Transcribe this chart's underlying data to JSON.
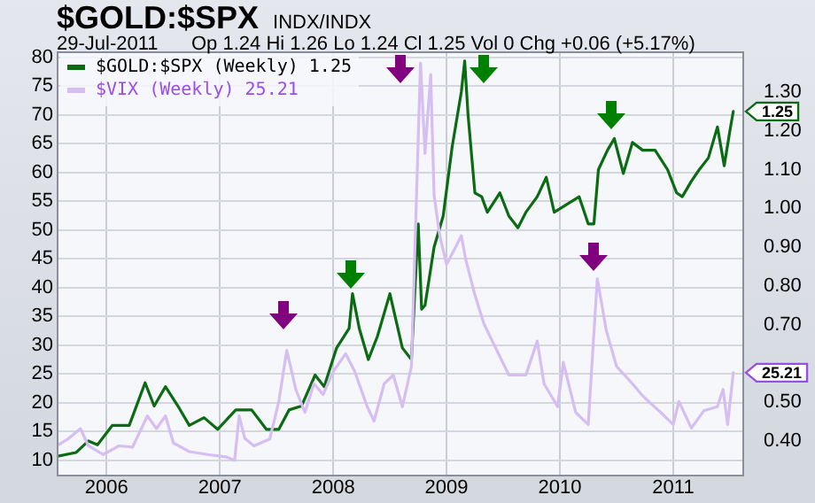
{
  "chart_data": {
    "type": "line",
    "title": "$GOLD:$SPX",
    "subtitle": "INDX/INDX",
    "annotations": [
      "29-Jul-2011",
      "Op 1.24  Hi 1.26  Lo 1.24  Cl 1.25  Vol 0  Chg +0.06 (+5.17%)"
    ],
    "legend": "top left",
    "grid": true,
    "marker": "none",
    "line_style": "solid",
    "xlim": [
      2005.56,
      2011.61
    ],
    "xticks": [
      2006,
      2007,
      2008,
      2009,
      2010,
      2011
    ],
    "ylim": [
      7.5,
      81
    ],
    "yticks": [
      10,
      15,
      20,
      25,
      30,
      35,
      40,
      45,
      50,
      55,
      60,
      65,
      70,
      75,
      80
    ],
    "y2lim": [
      0.313,
      1.405
    ],
    "y2ticks": [
      {
        "value": 0.4,
        "label": "0.40"
      },
      {
        "value": 0.5,
        "label": "0.50"
      },
      {
        "value": 0.7,
        "label": "0.70"
      },
      {
        "value": 0.8,
        "label": "0.80"
      },
      {
        "value": 0.9,
        "label": "0.90"
      },
      {
        "value": 1.0,
        "label": "1.00"
      },
      {
        "value": 1.1,
        "label": "1.10"
      },
      {
        "value": 1.2,
        "label": "1.20"
      },
      {
        "value": 1.3,
        "label": "1.30"
      }
    ],
    "series": [
      {
        "name": "$VIX (Weekly) 25.21",
        "color": "#d6bdf2",
        "axis": "y",
        "x": [
          2005.56,
          2005.66,
          2005.77,
          2005.84,
          2005.97,
          2006.11,
          2006.23,
          2006.36,
          2006.44,
          2006.52,
          2006.59,
          2006.73,
          2006.89,
          2007.05,
          2007.13,
          2007.17,
          2007.22,
          2007.3,
          2007.44,
          2007.52,
          2007.59,
          2007.67,
          2007.75,
          2007.83,
          2007.91,
          2008.0,
          2008.11,
          2008.19,
          2008.3,
          2008.36,
          2008.45,
          2008.53,
          2008.61,
          2008.69,
          2008.77,
          2008.81,
          2008.86,
          2008.89,
          2008.94,
          2009.0,
          2009.08,
          2009.13,
          2009.17,
          2009.25,
          2009.33,
          2009.48,
          2009.55,
          2009.7,
          2009.8,
          2009.86,
          2009.98,
          2010.03,
          2010.14,
          2010.25,
          2010.33,
          2010.41,
          2010.5,
          2010.64,
          2010.72,
          2010.8,
          2010.89,
          2011.0,
          2011.05,
          2011.16,
          2011.27,
          2011.39,
          2011.44,
          2011.48,
          2011.53
        ],
        "values": [
          12.5,
          13.7,
          15.5,
          12.5,
          11,
          12.5,
          12.3,
          17.7,
          15.5,
          17.7,
          13,
          11.5,
          11,
          10.6,
          10,
          17.7,
          13.8,
          12.5,
          13.7,
          20.2,
          29.1,
          22.3,
          18.3,
          23.3,
          21.4,
          25.4,
          28.5,
          25.4,
          19.3,
          16.8,
          23.3,
          24.8,
          19.3,
          26.3,
          79,
          63.3,
          77,
          56,
          49,
          44,
          47,
          49,
          44.8,
          38.7,
          33.7,
          27.6,
          24.8,
          24.8,
          30.7,
          23.3,
          19.3,
          27,
          18.3,
          16.2,
          41.5,
          32.5,
          26.3,
          23.3,
          21.4,
          19.9,
          18.3,
          16.2,
          20.2,
          15.6,
          18.6,
          19.3,
          22.3,
          16.2,
          25.21
        ],
        "value_labels": [
          null,
          null,
          null,
          null,
          null,
          null,
          null,
          null,
          null,
          null,
          null,
          null,
          null,
          null,
          null,
          null,
          null,
          null,
          null,
          null,
          null,
          null,
          null,
          null,
          null,
          null,
          null,
          null,
          null,
          null,
          null,
          null,
          null,
          null,
          null,
          null,
          null,
          null,
          null,
          null,
          null,
          null,
          null,
          null,
          null,
          null,
          null,
          null,
          null,
          null,
          null,
          null,
          null,
          null,
          null,
          null,
          null,
          null,
          null,
          null,
          null,
          null,
          null,
          null,
          null,
          null,
          null,
          null,
          "25.21"
        ]
      },
      {
        "name": "$GOLD:$SPX (Weekly) 1.25",
        "color": "#0b6b12",
        "axis": "y2",
        "x": [
          2005.56,
          2005.73,
          2005.84,
          2005.92,
          2006.05,
          2006.2,
          2006.34,
          2006.42,
          2006.52,
          2006.63,
          2006.73,
          2006.86,
          2006.98,
          2007.14,
          2007.28,
          2007.41,
          2007.52,
          2007.61,
          2007.72,
          2007.84,
          2007.92,
          2008.03,
          2008.14,
          2008.17,
          2008.23,
          2008.31,
          2008.39,
          2008.5,
          2008.61,
          2008.69,
          2008.75,
          2008.78,
          2008.81,
          2008.89,
          2008.97,
          2009.05,
          2009.13,
          2009.16,
          2009.19,
          2009.25,
          2009.31,
          2009.36,
          2009.47,
          2009.55,
          2009.63,
          2009.7,
          2009.8,
          2009.88,
          2009.95,
          2010.06,
          2010.17,
          2010.25,
          2010.3,
          2010.34,
          2010.42,
          2010.48,
          2010.56,
          2010.64,
          2010.73,
          2010.84,
          2010.95,
          2011.03,
          2011.08,
          2011.16,
          2011.23,
          2011.31,
          2011.39,
          2011.45,
          2011.5,
          2011.53
        ],
        "values": [
          0.36,
          0.37,
          0.4,
          0.39,
          0.44,
          0.44,
          0.55,
          0.49,
          0.54,
          0.49,
          0.44,
          0.46,
          0.43,
          0.48,
          0.48,
          0.43,
          0.43,
          0.48,
          0.49,
          0.57,
          0.54,
          0.64,
          0.69,
          0.78,
          0.69,
          0.61,
          0.67,
          0.78,
          0.64,
          0.61,
          0.96,
          0.74,
          0.75,
          0.9,
          0.98,
          1.16,
          1.3,
          1.38,
          1.24,
          1.04,
          1.03,
          0.99,
          1.04,
          0.98,
          0.95,
          0.99,
          1.03,
          1.08,
          0.99,
          1.01,
          1.03,
          0.96,
          0.96,
          1.1,
          1.15,
          1.18,
          1.09,
          1.17,
          1.15,
          1.15,
          1.1,
          1.04,
          1.03,
          1.07,
          1.1,
          1.13,
          1.21,
          1.11,
          1.2,
          1.25
        ],
        "value_labels": [
          null,
          null,
          null,
          null,
          null,
          null,
          null,
          null,
          null,
          null,
          null,
          null,
          null,
          null,
          null,
          null,
          null,
          null,
          null,
          null,
          null,
          null,
          null,
          null,
          null,
          null,
          null,
          null,
          null,
          null,
          null,
          null,
          null,
          null,
          null,
          null,
          null,
          null,
          null,
          null,
          null,
          null,
          null,
          null,
          null,
          null,
          null,
          null,
          null,
          null,
          null,
          null,
          null,
          null,
          null,
          null,
          null,
          null,
          null,
          null,
          null,
          null,
          null,
          null,
          null,
          null,
          null,
          null,
          null,
          "1.25"
        ]
      }
    ]
  }
}
